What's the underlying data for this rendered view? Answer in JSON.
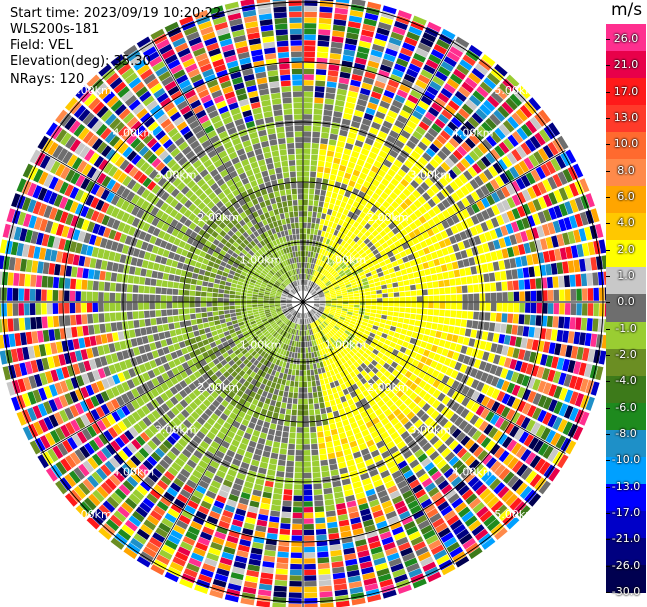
{
  "header": {
    "start_time": "Start time: 2023/09/19 10:20:22",
    "instrument": "WLS200s-181",
    "field": "Field: VEL",
    "elevation": "Elevation(deg): 35.30",
    "nrays": "NRays: 120"
  },
  "colorbar": {
    "unit": "m/s",
    "ticks": [
      "26.0",
      "21.0",
      "17.0",
      "13.0",
      "10.0",
      "8.0",
      "6.0",
      "4.0",
      "2.0",
      "1.0",
      "0.0",
      "-1.0",
      "-2.0",
      "-4.0",
      "-6.0",
      "-8.0",
      "-10.0",
      "-13.0",
      "-17.0",
      "-21.0",
      "-26.0",
      "-30.0"
    ],
    "colors": [
      "#ff2f8f",
      "#e8004a",
      "#ff1a1a",
      "#ff3a2a",
      "#ff6a2f",
      "#ff8a4a",
      "#ffa500",
      "#ffc800",
      "#ffff00",
      "#c8c8c8",
      "#6e6e6e",
      "#9acd32",
      "#6b8e23",
      "#3d7a1a",
      "#1e8a1e",
      "#1e90c8",
      "#00a0ff",
      "#0000ff",
      "#0000c8",
      "#000080",
      "#000050"
    ]
  },
  "chart_data": {
    "type": "ppi",
    "field": "VEL",
    "units": "m/s",
    "nrays": 120,
    "elevation_deg": 35.3,
    "range_ring_labels": [
      "1.00km",
      "2.00km",
      "3.00km",
      "4.00km",
      "5.00km"
    ],
    "range_rings_km": [
      1,
      2,
      3,
      4,
      5
    ],
    "inner_pattern": "near field mostly 0 to -2 m/s (grey/green) with +2 to +4 m/s (yellow) on the east side and a yellow patch near center",
    "outer_pattern": "beyond ~3.6 km returns are noise with random values across full scale"
  }
}
